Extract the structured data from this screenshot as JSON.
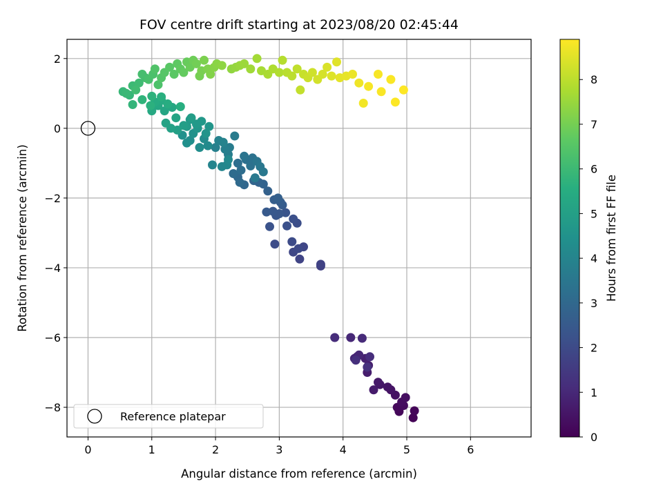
{
  "chart_data": {
    "type": "scatter",
    "title": "FOV centre drift starting at 2023/08/20 02:45:44",
    "xlabel": "Angular distance from reference (arcmin)",
    "ylabel": "Rotation from reference (arcmin)",
    "xlim": [
      -0.33,
      6.95
    ],
    "ylim": [
      -8.85,
      2.55
    ],
    "xticks": [
      0,
      1,
      2,
      3,
      4,
      5,
      6
    ],
    "xtick_labels": [
      "0",
      "1",
      "2",
      "3",
      "4",
      "5",
      "6"
    ],
    "yticks": [
      2,
      0,
      -2,
      -4,
      -6,
      -8
    ],
    "ytick_labels": [
      "2",
      "0",
      "−2",
      "−4",
      "−6",
      "−8"
    ],
    "grid": true,
    "colormap": "viridis",
    "colorbar": {
      "label": "Hours from first FF file",
      "range": [
        0,
        8.9
      ],
      "ticks": [
        0,
        1,
        2,
        3,
        4,
        5,
        6,
        7,
        8
      ],
      "tick_labels": [
        "0",
        "1",
        "2",
        "3",
        "4",
        "5",
        "6",
        "7",
        "8"
      ]
    },
    "legend": {
      "position": "lower-left",
      "entries": [
        {
          "label": "Reference platepar",
          "marker": "open-circle"
        }
      ]
    },
    "reference_point": {
      "x": 0,
      "y": 0
    },
    "series": [
      {
        "points": [
          [
            5.1,
            -8.3,
            0.05
          ],
          [
            5.12,
            -8.1,
            0.1
          ],
          [
            4.88,
            -8.12,
            0.15
          ],
          [
            4.85,
            -8.0,
            0.2
          ],
          [
            4.95,
            -7.95,
            0.25
          ],
          [
            4.92,
            -7.85,
            0.3
          ],
          [
            4.98,
            -7.72,
            0.35
          ],
          [
            4.82,
            -7.65,
            0.4
          ],
          [
            4.75,
            -7.5,
            0.45
          ],
          [
            4.7,
            -7.42,
            0.5
          ],
          [
            4.58,
            -7.35,
            0.55
          ],
          [
            4.55,
            -7.28,
            0.6
          ],
          [
            4.48,
            -7.5,
            0.65
          ],
          [
            4.38,
            -7.0,
            0.7
          ],
          [
            4.4,
            -6.8,
            0.75
          ],
          [
            4.35,
            -6.6,
            0.8
          ],
          [
            4.22,
            -6.55,
            0.85
          ],
          [
            4.18,
            -6.6,
            0.9
          ],
          [
            4.25,
            -6.5,
            0.95
          ],
          [
            4.12,
            -6.0,
            1.0
          ],
          [
            4.3,
            -6.02,
            1.05
          ],
          [
            3.87,
            -6.0,
            1.1
          ],
          [
            4.42,
            -6.55,
            1.15
          ],
          [
            4.2,
            -6.65,
            1.2
          ],
          [
            4.38,
            -6.85,
            1.25
          ],
          [
            3.65,
            -3.95,
            1.7
          ],
          [
            3.65,
            -3.9,
            1.75
          ],
          [
            3.32,
            -3.75,
            1.8
          ],
          [
            3.38,
            -3.4,
            1.85
          ],
          [
            3.22,
            -3.55,
            1.9
          ],
          [
            3.3,
            -3.45,
            1.95
          ],
          [
            3.2,
            -3.25,
            2.0
          ],
          [
            2.93,
            -3.32,
            2.05
          ],
          [
            3.28,
            -2.72,
            2.1
          ],
          [
            3.22,
            -2.6,
            2.15
          ],
          [
            3.12,
            -2.8,
            2.2
          ],
          [
            2.85,
            -2.82,
            2.25
          ],
          [
            3.1,
            -2.42,
            2.3
          ],
          [
            2.95,
            -2.5,
            2.35
          ],
          [
            3.0,
            -2.45,
            2.4
          ],
          [
            2.9,
            -2.38,
            2.45
          ],
          [
            2.8,
            -2.4,
            2.5
          ],
          [
            3.05,
            -2.2,
            2.55
          ],
          [
            3.02,
            -2.12,
            2.6
          ],
          [
            2.92,
            -2.05,
            2.65
          ],
          [
            2.98,
            -2.0,
            2.7
          ],
          [
            2.82,
            -1.8,
            2.75
          ],
          [
            2.75,
            -1.6,
            2.8
          ],
          [
            2.68,
            -1.55,
            2.85
          ],
          [
            2.6,
            -1.5,
            2.9
          ],
          [
            2.45,
            -1.62,
            2.95
          ],
          [
            2.35,
            -1.4,
            3.0
          ],
          [
            2.38,
            -1.55,
            3.05
          ],
          [
            2.28,
            -1.3,
            3.1
          ],
          [
            2.4,
            -1.2,
            3.15
          ],
          [
            2.35,
            -1.0,
            3.2
          ],
          [
            2.48,
            -0.9,
            3.25
          ],
          [
            2.55,
            -1.08,
            3.3
          ],
          [
            2.58,
            -0.85,
            3.35
          ],
          [
            2.45,
            -0.8,
            3.4
          ],
          [
            2.65,
            -0.95,
            3.45
          ],
          [
            2.7,
            -1.1,
            3.5
          ],
          [
            2.75,
            -1.25,
            3.55
          ],
          [
            2.62,
            -1.42,
            3.6
          ],
          [
            2.3,
            -0.22,
            3.65
          ],
          [
            2.22,
            -0.55,
            3.7
          ],
          [
            2.2,
            -0.75,
            3.75
          ],
          [
            2.15,
            -0.6,
            3.8
          ],
          [
            2.0,
            -0.55,
            3.85
          ],
          [
            2.05,
            -0.35,
            3.9
          ],
          [
            2.12,
            -0.4,
            3.95
          ],
          [
            1.95,
            -1.05,
            4.0
          ],
          [
            2.1,
            -1.1,
            4.05
          ],
          [
            2.18,
            -1.05,
            4.1
          ],
          [
            2.2,
            -0.9,
            4.15
          ],
          [
            1.88,
            -0.5,
            4.2
          ],
          [
            1.82,
            -0.3,
            4.25
          ],
          [
            1.75,
            -0.55,
            4.3
          ],
          [
            1.6,
            -0.35,
            4.35
          ],
          [
            1.55,
            -0.42,
            4.4
          ],
          [
            1.48,
            -0.2,
            4.45
          ],
          [
            1.65,
            -0.15,
            4.5
          ],
          [
            1.85,
            -0.15,
            4.55
          ],
          [
            1.9,
            0.05,
            4.6
          ],
          [
            1.72,
            0.0,
            4.65
          ],
          [
            1.78,
            0.2,
            4.7
          ],
          [
            1.7,
            0.12,
            4.75
          ],
          [
            1.6,
            0.25,
            4.8
          ],
          [
            1.55,
            0.05,
            4.85
          ],
          [
            1.62,
            0.3,
            4.9
          ],
          [
            1.5,
            0.08,
            4.95
          ],
          [
            1.4,
            -0.05,
            5.0
          ],
          [
            1.3,
            0.0,
            5.05
          ],
          [
            1.22,
            0.15,
            5.1
          ],
          [
            1.38,
            0.3,
            5.15
          ],
          [
            1.2,
            0.5,
            5.2
          ],
          [
            1.32,
            0.6,
            5.25
          ],
          [
            1.1,
            0.65,
            5.3
          ],
          [
            1.0,
            0.5,
            5.35
          ],
          [
            1.15,
            0.8,
            5.4
          ],
          [
            1.05,
            0.75,
            5.45
          ],
          [
            1.25,
            0.7,
            5.5
          ],
          [
            1.45,
            0.62,
            5.55
          ],
          [
            1.15,
            0.9,
            5.6
          ],
          [
            0.98,
            0.65,
            5.65
          ],
          [
            1.0,
            0.92,
            5.7
          ],
          [
            0.85,
            0.82,
            5.75
          ],
          [
            0.7,
            0.68,
            5.8
          ],
          [
            0.65,
            0.95,
            5.85
          ],
          [
            0.55,
            1.05,
            5.9
          ],
          [
            0.6,
            1.0,
            5.95
          ],
          [
            0.7,
            1.22,
            6.0
          ],
          [
            0.8,
            1.3,
            6.05
          ],
          [
            0.75,
            1.1,
            6.1
          ],
          [
            0.9,
            1.45,
            6.15
          ],
          [
            0.85,
            1.55,
            6.2
          ],
          [
            0.95,
            1.4,
            6.25
          ],
          [
            1.02,
            1.55,
            6.3
          ],
          [
            1.1,
            1.25,
            6.35
          ],
          [
            1.05,
            1.7,
            6.4
          ],
          [
            1.15,
            1.45,
            6.45
          ],
          [
            1.2,
            1.6,
            6.5
          ],
          [
            1.28,
            1.75,
            6.55
          ],
          [
            1.35,
            1.55,
            6.6
          ],
          [
            1.4,
            1.85,
            6.65
          ],
          [
            1.45,
            1.7,
            6.7
          ],
          [
            1.5,
            1.6,
            6.75
          ],
          [
            1.55,
            1.9,
            6.8
          ],
          [
            1.6,
            1.75,
            6.85
          ],
          [
            1.65,
            1.95,
            6.9
          ],
          [
            1.7,
            1.85,
            6.95
          ],
          [
            1.75,
            1.5,
            7.0
          ],
          [
            1.78,
            1.65,
            7.05
          ],
          [
            1.82,
            1.95,
            7.1
          ],
          [
            1.88,
            1.7,
            7.15
          ],
          [
            1.92,
            1.55,
            7.2
          ],
          [
            1.98,
            1.75,
            7.25
          ],
          [
            2.02,
            1.85,
            7.3
          ],
          [
            2.1,
            1.8,
            7.35
          ],
          [
            2.25,
            1.7,
            7.4
          ],
          [
            2.32,
            1.75,
            7.45
          ],
          [
            2.38,
            1.8,
            7.5
          ],
          [
            2.45,
            1.85,
            7.55
          ],
          [
            2.55,
            1.7,
            7.6
          ],
          [
            2.65,
            2.0,
            7.65
          ],
          [
            2.72,
            1.65,
            7.7
          ],
          [
            2.82,
            1.55,
            7.75
          ],
          [
            2.9,
            1.7,
            7.8
          ],
          [
            3.0,
            1.6,
            7.85
          ],
          [
            3.05,
            1.95,
            7.9
          ],
          [
            3.12,
            1.6,
            7.95
          ],
          [
            3.2,
            1.5,
            8.0
          ],
          [
            3.28,
            1.7,
            8.05
          ],
          [
            3.33,
            1.1,
            8.1
          ],
          [
            3.38,
            1.55,
            8.15
          ],
          [
            3.45,
            1.45,
            8.2
          ],
          [
            3.52,
            1.6,
            8.25
          ],
          [
            3.6,
            1.4,
            8.3
          ],
          [
            3.68,
            1.55,
            8.35
          ],
          [
            3.75,
            1.75,
            8.4
          ],
          [
            3.82,
            1.5,
            8.45
          ],
          [
            3.9,
            1.9,
            8.5
          ],
          [
            3.95,
            1.45,
            8.55
          ],
          [
            4.05,
            1.5,
            8.6
          ],
          [
            4.15,
            1.55,
            8.65
          ],
          [
            4.25,
            1.3,
            8.7
          ],
          [
            4.32,
            0.72,
            8.75
          ],
          [
            4.4,
            1.2,
            8.8
          ],
          [
            4.55,
            1.55,
            8.82
          ],
          [
            4.6,
            1.05,
            8.84
          ],
          [
            4.75,
            1.4,
            8.86
          ],
          [
            4.82,
            0.75,
            8.88
          ],
          [
            4.95,
            1.1,
            8.9
          ]
        ]
      }
    ]
  }
}
